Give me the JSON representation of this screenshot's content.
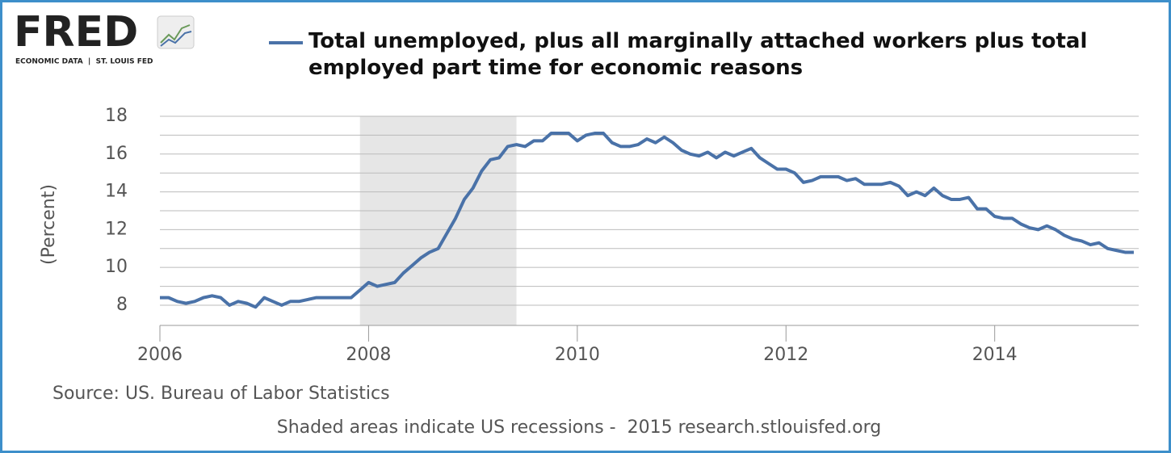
{
  "logo": {
    "name": "FRED",
    "tagline": "ECONOMIC DATA  |  ST. LOUIS FED"
  },
  "chart_data": {
    "type": "line",
    "y_label": "(Percent)",
    "source": "Source: US. Bureau of Labor Statistics",
    "note": "Shaded areas indicate US recessions -  2015 research.stlouisfed.org",
    "xlim": [
      2006,
      2015.38
    ],
    "xticks": [
      2006,
      2008,
      2010,
      2012,
      2014
    ],
    "ylim": [
      6.93,
      18
    ],
    "yticks": [
      8,
      10,
      12,
      14,
      16,
      18
    ],
    "minor_yticks": [
      9,
      11,
      13,
      15,
      17
    ],
    "grid": true,
    "recessions": [
      [
        2007.917,
        2009.417
      ]
    ],
    "recession_color": "#e6e6e6",
    "series": [
      {
        "name": "Total unemployed, plus all marginally attached workers plus total employed part time for economic reasons",
        "color": "#4a72a8",
        "x": [
          2006,
          2006.083,
          2006.167,
          2006.25,
          2006.333,
          2006.417,
          2006.5,
          2006.583,
          2006.667,
          2006.75,
          2006.833,
          2006.917,
          2007,
          2007.083,
          2007.167,
          2007.25,
          2007.333,
          2007.417,
          2007.5,
          2007.583,
          2007.667,
          2007.75,
          2007.833,
          2007.917,
          2008,
          2008.083,
          2008.167,
          2008.25,
          2008.333,
          2008.417,
          2008.5,
          2008.583,
          2008.667,
          2008.75,
          2008.833,
          2008.917,
          2009,
          2009.083,
          2009.167,
          2009.25,
          2009.333,
          2009.417,
          2009.5,
          2009.583,
          2009.667,
          2009.75,
          2009.833,
          2009.917,
          2010,
          2010.083,
          2010.167,
          2010.25,
          2010.333,
          2010.417,
          2010.5,
          2010.583,
          2010.667,
          2010.75,
          2010.833,
          2010.917,
          2011,
          2011.083,
          2011.167,
          2011.25,
          2011.333,
          2011.417,
          2011.5,
          2011.583,
          2011.667,
          2011.75,
          2011.833,
          2011.917,
          2012,
          2012.083,
          2012.167,
          2012.25,
          2012.333,
          2012.417,
          2012.5,
          2012.583,
          2012.667,
          2012.75,
          2012.833,
          2012.917,
          2013,
          2013.083,
          2013.167,
          2013.25,
          2013.333,
          2013.417,
          2013.5,
          2013.583,
          2013.667,
          2013.75,
          2013.833,
          2013.917,
          2014,
          2014.083,
          2014.167,
          2014.25,
          2014.333,
          2014.417,
          2014.5,
          2014.583,
          2014.667,
          2014.75,
          2014.833,
          2014.917,
          2015,
          2015.083,
          2015.167,
          2015.25,
          2015.333
        ],
        "values": [
          8.4,
          8.4,
          8.2,
          8.1,
          8.2,
          8.4,
          8.5,
          8.4,
          8.0,
          8.2,
          8.1,
          7.9,
          8.4,
          8.2,
          8.0,
          8.2,
          8.2,
          8.3,
          8.4,
          8.4,
          8.4,
          8.4,
          8.4,
          8.8,
          9.2,
          9.0,
          9.1,
          9.2,
          9.7,
          10.1,
          10.5,
          10.8,
          11.0,
          11.8,
          12.6,
          13.6,
          14.2,
          15.1,
          15.7,
          15.8,
          16.4,
          16.5,
          16.4,
          16.7,
          16.7,
          17.1,
          17.1,
          17.1,
          16.7,
          17.0,
          17.1,
          17.1,
          16.6,
          16.4,
          16.4,
          16.5,
          16.8,
          16.6,
          16.9,
          16.6,
          16.2,
          16.0,
          15.9,
          16.1,
          15.8,
          16.1,
          15.9,
          16.1,
          16.3,
          15.8,
          15.5,
          15.2,
          15.2,
          15.0,
          14.5,
          14.6,
          14.8,
          14.8,
          14.8,
          14.6,
          14.7,
          14.4,
          14.4,
          14.4,
          14.5,
          14.3,
          13.8,
          14.0,
          13.8,
          14.2,
          13.8,
          13.6,
          13.6,
          13.7,
          13.1,
          13.1,
          12.7,
          12.6,
          12.6,
          12.3,
          12.1,
          12.0,
          12.2,
          12.0,
          11.7,
          11.5,
          11.4,
          11.2,
          11.3,
          11.0,
          10.9,
          10.8,
          10.8
        ]
      }
    ]
  }
}
